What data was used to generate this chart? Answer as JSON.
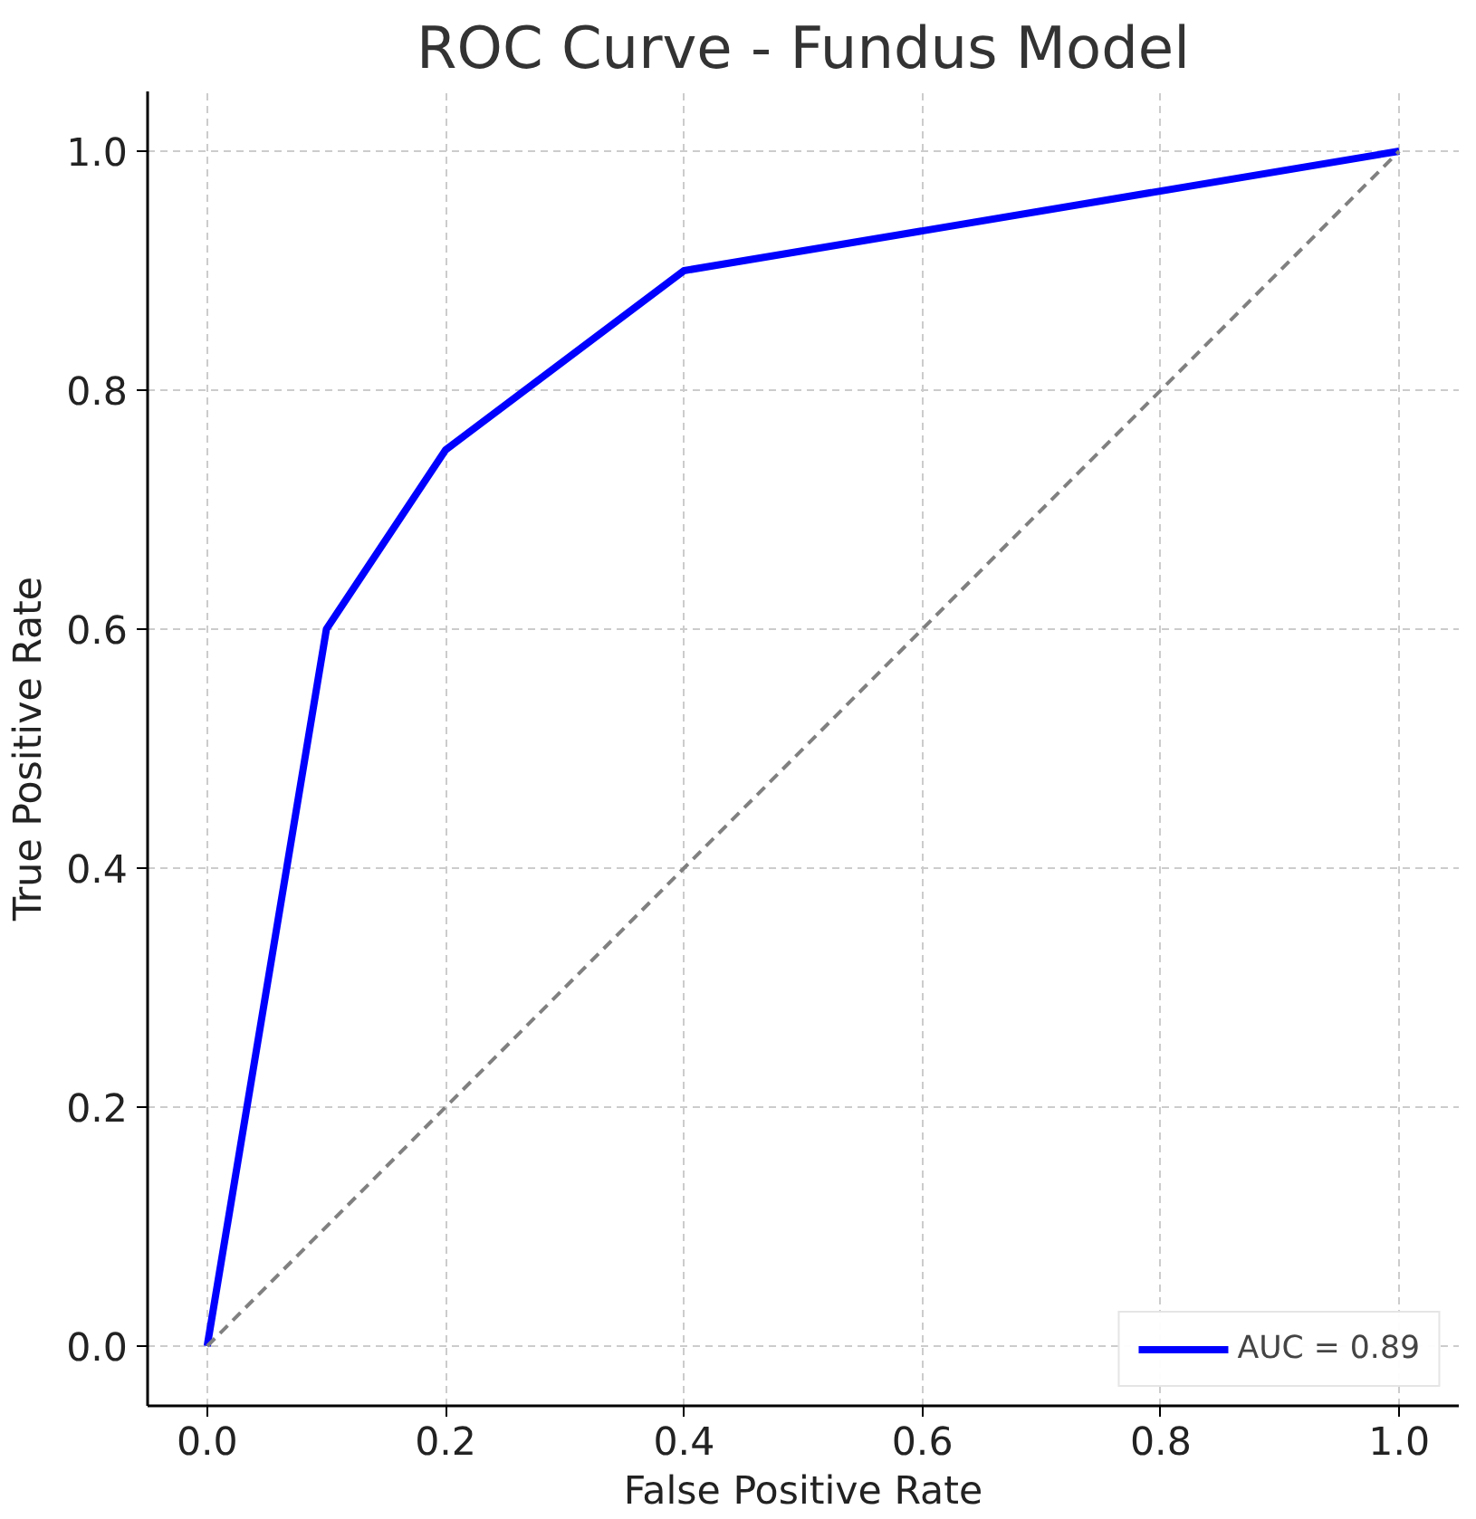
{
  "chart_data": {
    "type": "line",
    "title": "ROC Curve - Fundus Model",
    "xlabel": "False Positive Rate",
    "ylabel": "True Positive Rate",
    "series": [
      {
        "name": "AUC = 0.89",
        "color": "#0000ff",
        "x": [
          0,
          0.1,
          0.2,
          0.4,
          1
        ],
        "values": [
          0,
          0.6,
          0.75,
          0.9,
          1
        ],
        "line_style": "solid"
      },
      {
        "color": "#808080",
        "x": [
          0,
          1
        ],
        "values": [
          0,
          1
        ],
        "line_style": "dashed"
      }
    ],
    "xlim": [
      -0.05,
      1.05
    ],
    "ylim": [
      -0.05,
      1.05
    ],
    "xticks": [
      {
        "value": 0,
        "label": "0.0"
      },
      {
        "value": 0.2,
        "label": "0.2"
      },
      {
        "value": 0.4,
        "label": "0.4"
      },
      {
        "value": 0.6,
        "label": "0.6"
      },
      {
        "value": 0.8,
        "label": "0.8"
      },
      {
        "value": 1,
        "label": "1.0"
      }
    ],
    "yticks": [
      {
        "value": 0,
        "label": "0.0"
      },
      {
        "value": 0.2,
        "label": "0.2"
      },
      {
        "value": 0.4,
        "label": "0.4"
      },
      {
        "value": 0.6,
        "label": "0.6"
      },
      {
        "value": 0.8,
        "label": "0.8"
      },
      {
        "value": 1,
        "label": "1.0"
      }
    ],
    "grid": true,
    "legend": "bottom right"
  }
}
